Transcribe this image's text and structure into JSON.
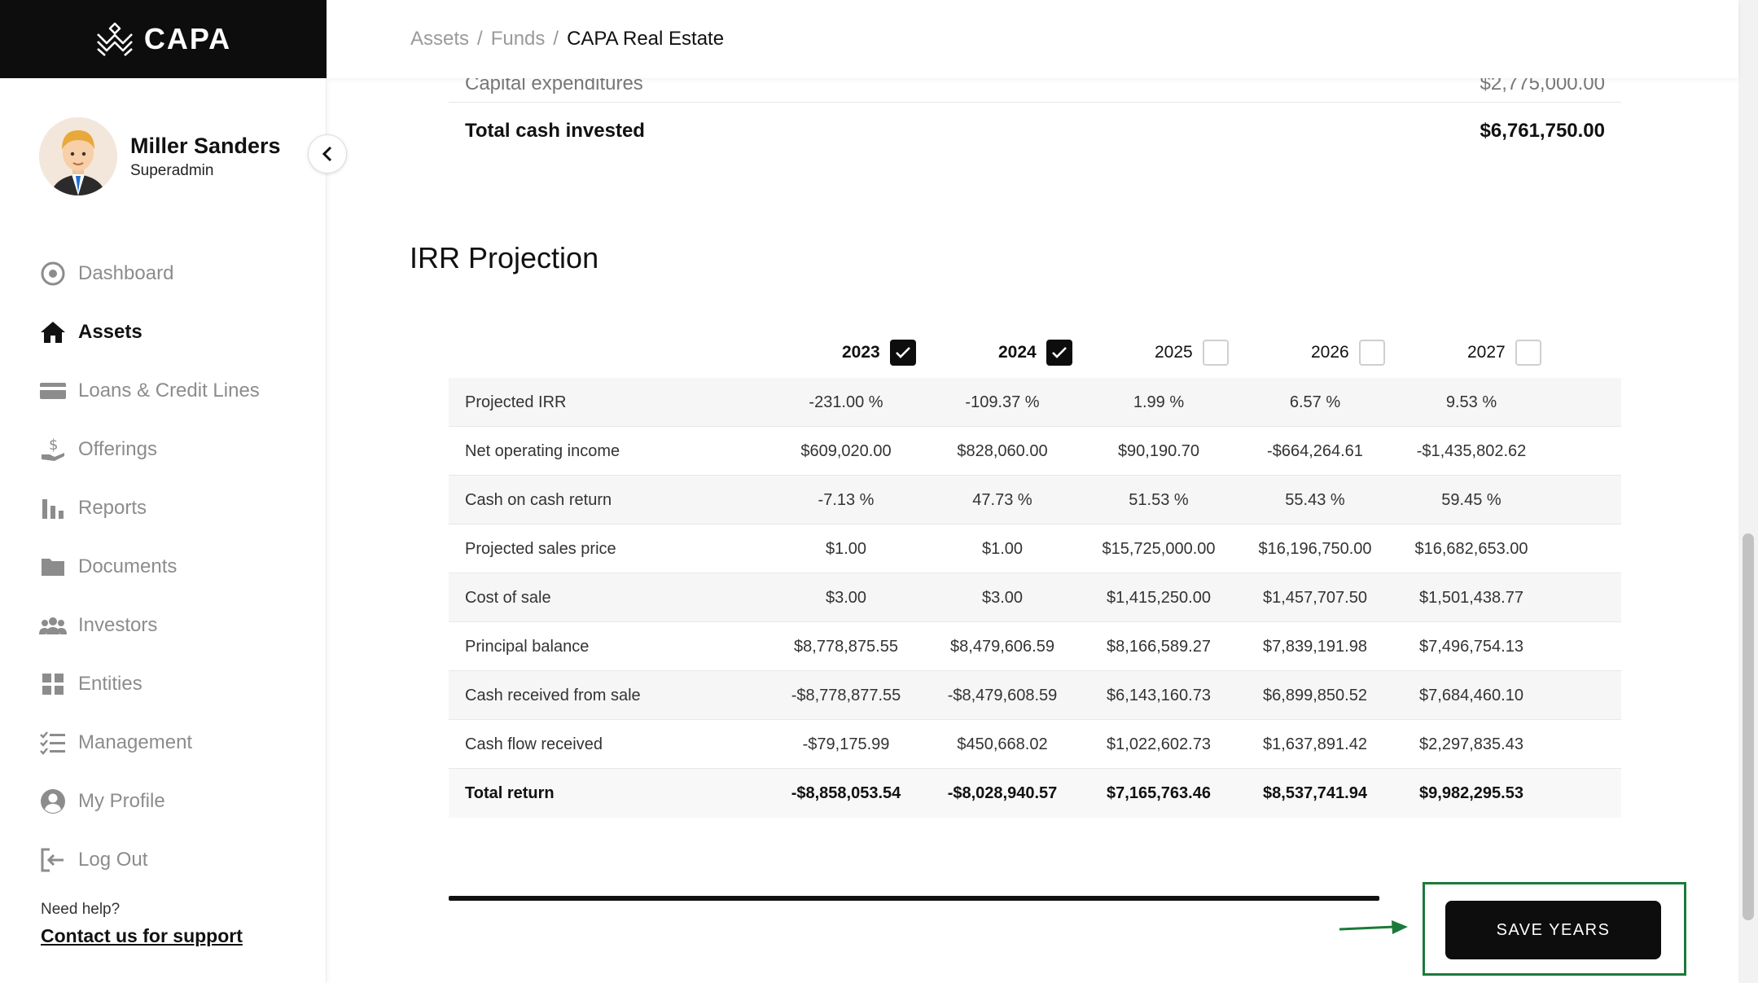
{
  "app": {
    "logo_text": "CAPA"
  },
  "user": {
    "name": "Miller Sanders",
    "role": "Superadmin"
  },
  "nav": [
    {
      "label": "Dashboard",
      "icon": "dashboard-icon",
      "active": false
    },
    {
      "label": "Assets",
      "icon": "home-icon",
      "active": true
    },
    {
      "label": "Loans & Credit Lines",
      "icon": "credit-card-icon",
      "active": false
    },
    {
      "label": "Offerings",
      "icon": "offerings-icon",
      "active": false
    },
    {
      "label": "Reports",
      "icon": "bar-chart-icon",
      "active": false
    },
    {
      "label": "Documents",
      "icon": "folder-icon",
      "active": false
    },
    {
      "label": "Investors",
      "icon": "users-icon",
      "active": false
    },
    {
      "label": "Entities",
      "icon": "grid-icon",
      "active": false
    },
    {
      "label": "Management",
      "icon": "checklist-icon",
      "active": false
    },
    {
      "label": "My Profile",
      "icon": "user-circle-icon",
      "active": false
    },
    {
      "label": "Log Out",
      "icon": "logout-icon",
      "active": false
    }
  ],
  "help": {
    "label": "Need help?",
    "link": "Contact us for support"
  },
  "breadcrumb": {
    "items": [
      "Assets",
      "Funds"
    ],
    "separator": "/",
    "current": "CAPA Real Estate"
  },
  "summary": {
    "cutoff_label": "Capital expenditures",
    "cutoff_value": "$2,775,000.00",
    "total_label": "Total cash invested",
    "total_value": "$6,761,750.00"
  },
  "irr": {
    "title": "IRR Projection",
    "years": [
      {
        "year": "2023",
        "checked": true
      },
      {
        "year": "2024",
        "checked": true
      },
      {
        "year": "2025",
        "checked": false
      },
      {
        "year": "2026",
        "checked": false
      },
      {
        "year": "2027",
        "checked": false
      }
    ],
    "rows": [
      {
        "label": "Projected IRR",
        "values": [
          "-231.00 %",
          "-109.37 %",
          "1.99 %",
          "6.57 %",
          "9.53 %"
        ]
      },
      {
        "label": "Net operating income",
        "values": [
          "$609,020.00",
          "$828,060.00",
          "$90,190.70",
          "-$664,264.61",
          "-$1,435,802.62"
        ]
      },
      {
        "label": "Cash on cash return",
        "values": [
          "-7.13 %",
          "47.73 %",
          "51.53 %",
          "55.43 %",
          "59.45 %"
        ]
      },
      {
        "label": "Projected sales price",
        "values": [
          "$1.00",
          "$1.00",
          "$15,725,000.00",
          "$16,196,750.00",
          "$16,682,653.00"
        ]
      },
      {
        "label": "Cost of sale",
        "values": [
          "$3.00",
          "$3.00",
          "$1,415,250.00",
          "$1,457,707.50",
          "$1,501,438.77"
        ]
      },
      {
        "label": "Principal balance",
        "values": [
          "$8,778,875.55",
          "$8,479,606.59",
          "$8,166,589.27",
          "$7,839,191.98",
          "$7,496,754.13"
        ]
      },
      {
        "label": "Cash received from sale",
        "values": [
          "-$8,778,877.55",
          "-$8,479,608.59",
          "$6,143,160.73",
          "$6,899,850.52",
          "$7,684,460.10"
        ]
      },
      {
        "label": "Cash flow received",
        "values": [
          "-$79,175.99",
          "$450,668.02",
          "$1,022,602.73",
          "$1,637,891.42",
          "$2,297,835.43"
        ]
      },
      {
        "label": "Total return",
        "values": [
          "-$8,858,053.54",
          "-$8,028,940.57",
          "$7,165,763.46",
          "$8,537,741.94",
          "$9,982,295.53"
        ]
      }
    ]
  },
  "actions": {
    "save_years": "SAVE YEARS"
  },
  "colors": {
    "highlight": "#1b7a3a",
    "primary": "#0d0d0d"
  }
}
